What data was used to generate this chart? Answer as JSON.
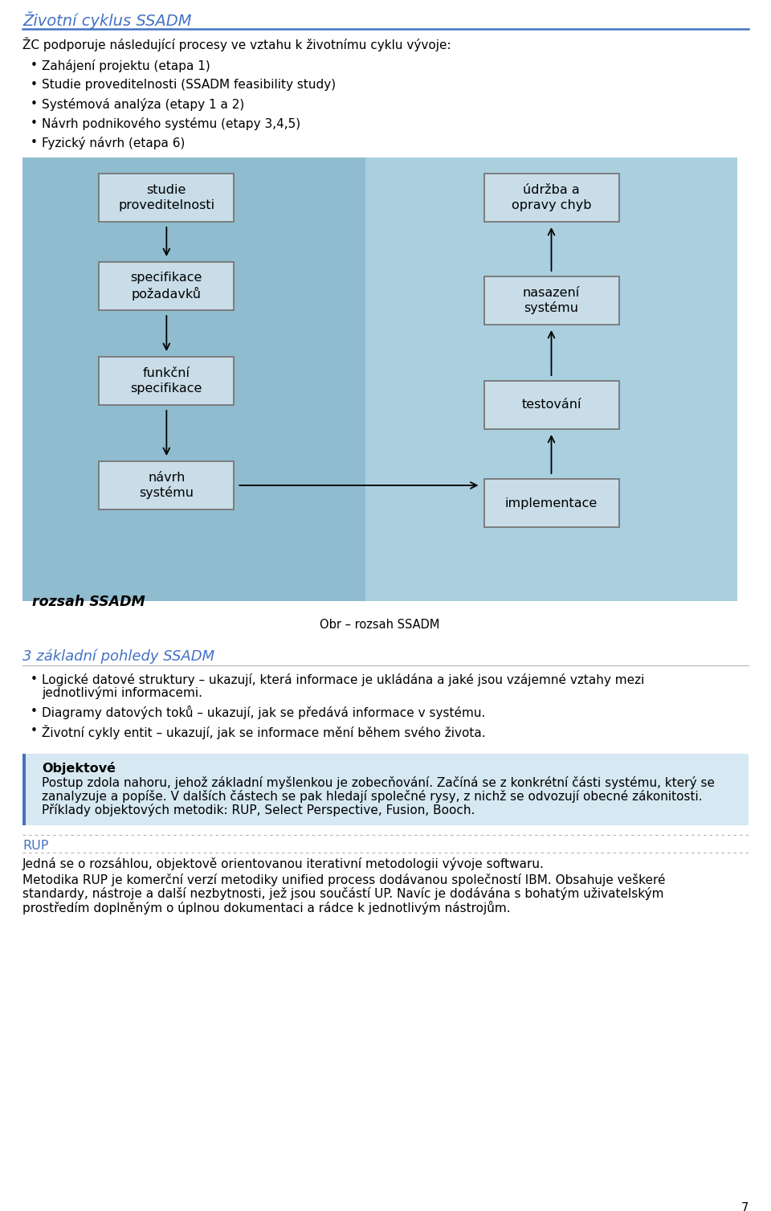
{
  "title": "Životní cyklus SSADM",
  "title_color": "#4472C4",
  "title_fontsize": 14,
  "separator_color": "#4472C4",
  "body_text_color": "#000000",
  "body_fontsize": 11.0,
  "bullet_intro": "ŽC podporuje následující procesy ve vztahu k životnímu cyklu vývoje:",
  "bullets": [
    "Zahájení projektu (etapa 1)",
    "Studie proveditelnosti (SSADM feasibility study)",
    "Systémová analýza (etapy 1 a 2)",
    "Návrh podnikového systému (etapy 3,4,5)",
    "Fyzický návrh (etapa 6)"
  ],
  "diagram_bg_left": "#8FBCCE",
  "diagram_bg_right": "#AACFDF",
  "diagram_box_fill": "#C8DDE8",
  "diagram_box_edge": "#777777",
  "diagram_label": "rozsah SSADM",
  "diagram_caption": "Obr – rozsah SSADM",
  "left_boxes": [
    "studie\nproveditelnosti",
    "specifikace\npožadavků",
    "funkční\nspecifikace",
    "návrh\nsystému"
  ],
  "right_boxes": [
    "údržba a\nopravy chyb",
    "nasazení\nsystému",
    "testování",
    "implementace"
  ],
  "section2_title": "3 základní pohledy SSADM",
  "section2_title_color": "#4472C4",
  "section2_bullets": [
    "Logické datové struktury – ukazují, která informace je ukládána a jaké jsou vzájemné vztahy mezi jednotlivými informacemi.",
    "Diagramy datových toků – ukazují, jak se předává informace v systému.",
    "Životní cykly entit – ukazují, jak se informace mění během svého života."
  ],
  "section3_title": "Objektové",
  "section3_bg": "#D6E8F2",
  "section3_border": "#4472C4",
  "section3_body": "Postup zdola nahoru, jehož základní myšlenkou je zobecňování. Začíná se z konkrétní části systému, který se zanalyzuje a popíše. V dalších částech se pak hledají společné rysy, z nichž se odvozují obecné zákonitosti. Příklady objektových metodik: RUP, Select Perspective, Fusion, Booch.",
  "section4_title": "RUP",
  "section4_title_color": "#4472C4",
  "section4_body1": "Jedná se o rozsáhlou, objektově orientovanou iterativní metodologii vývoje softwaru.",
  "section4_body2": "Metodika RUP je komerční verzí metodiky unified process dodávanou společností IBM. Obsahuje veškeré standardy, nástroje a další nezbytnosti, jež jsou součástí UP. Navíc je dodávána s bohatým uživatelským prostředím doplněným o úplnou dokumentaci a rádce k jednotlivým nástrojům.",
  "page_number": "7",
  "bg_color": "#FFFFFF"
}
